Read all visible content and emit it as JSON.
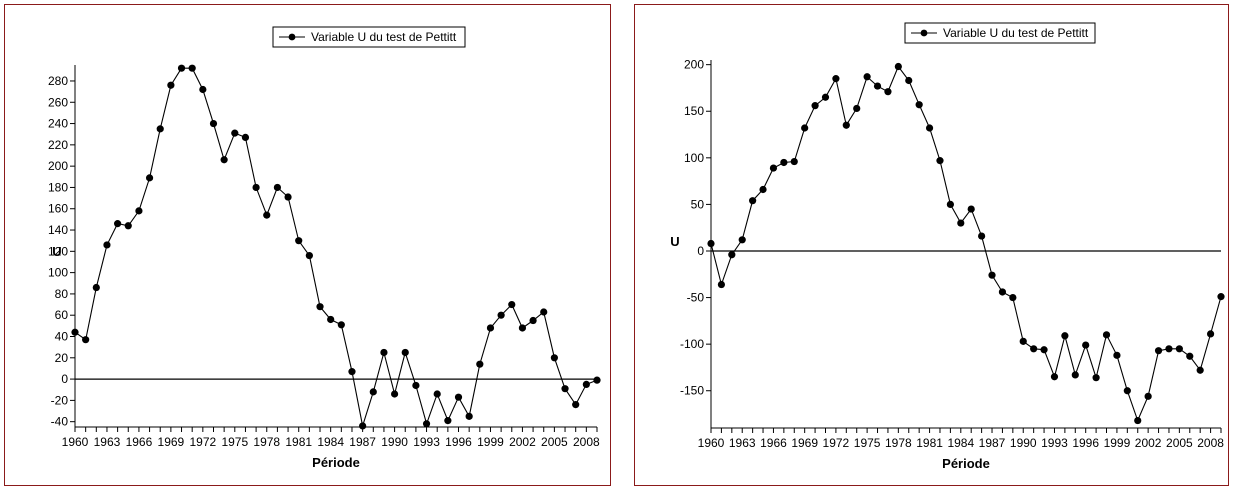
{
  "chart_data": [
    {
      "type": "line",
      "legend": [
        "Variable U du test de Pettitt"
      ],
      "legend_position": "top-center",
      "xlabel": "Période",
      "ylabel": "U",
      "xlim": [
        1960,
        2009
      ],
      "ylim": [
        -45,
        295
      ],
      "xticks": [
        "1960",
        "1963",
        "1966",
        "1969",
        "1972",
        "1975",
        "1978",
        "1981",
        "1984",
        "1987",
        "1990",
        "1993",
        "1996",
        "1999",
        "2002",
        "2005",
        "2008"
      ],
      "yticks": [
        "-40",
        "-20",
        "0",
        "20",
        "40",
        "60",
        "80",
        "100",
        "120",
        "140",
        "160",
        "180",
        "200",
        "220",
        "240",
        "260",
        "280"
      ],
      "zero_line": true,
      "series": [
        {
          "name": "Variable U du test de Pettitt",
          "x": [
            1960,
            1961,
            1962,
            1963,
            1964,
            1965,
            1966,
            1967,
            1968,
            1969,
            1970,
            1971,
            1972,
            1973,
            1974,
            1975,
            1976,
            1977,
            1978,
            1979,
            1980,
            1981,
            1982,
            1983,
            1984,
            1985,
            1986,
            1987,
            1988,
            1989,
            1990,
            1991,
            1992,
            1993,
            1994,
            1995,
            1996,
            1997,
            1998,
            1999,
            2000,
            2001,
            2002,
            2003,
            2004,
            2005,
            2006,
            2007,
            2008,
            2009
          ],
          "y": [
            44,
            37,
            86,
            126,
            146,
            144,
            158,
            189,
            235,
            276,
            292,
            292,
            272,
            240,
            206,
            231,
            227,
            180,
            154,
            180,
            171,
            130,
            116,
            68,
            56,
            51,
            7,
            -44,
            -12,
            25,
            -14,
            25,
            -6,
            -42,
            -14,
            -39,
            -17,
            -35,
            14,
            48,
            60,
            70,
            48,
            55,
            63,
            20,
            -9,
            -24,
            -5,
            -1
          ]
        }
      ]
    },
    {
      "type": "line",
      "legend": [
        "Variable U du test de Pettitt"
      ],
      "legend_position": "top-center",
      "xlabel": "Période",
      "ylabel": "U",
      "xlim": [
        1960,
        2009
      ],
      "ylim": [
        -190,
        205
      ],
      "xticks": [
        "1960",
        "1963",
        "1966",
        "1969",
        "1972",
        "1975",
        "1978",
        "1981",
        "1984",
        "1987",
        "1990",
        "1993",
        "1996",
        "1999",
        "2002",
        "2005",
        "2008"
      ],
      "yticks": [
        "200",
        "150",
        "100",
        "50",
        "0",
        "-50",
        "-100",
        "-150"
      ],
      "zero_line": true,
      "series": [
        {
          "name": "Variable U du test de Pettitt",
          "x": [
            1960,
            1961,
            1962,
            1963,
            1964,
            1965,
            1966,
            1967,
            1968,
            1969,
            1970,
            1971,
            1972,
            1973,
            1974,
            1975,
            1976,
            1977,
            1978,
            1979,
            1980,
            1981,
            1982,
            1983,
            1984,
            1985,
            1986,
            1987,
            1988,
            1989,
            1990,
            1991,
            1992,
            1993,
            1994,
            1995,
            1996,
            1997,
            1998,
            1999,
            2000,
            2001,
            2002,
            2003,
            2004,
            2005,
            2006,
            2007,
            2008,
            2009
          ],
          "y": [
            8,
            -36,
            -4,
            12,
            54,
            66,
            89,
            95,
            96,
            132,
            156,
            165,
            185,
            135,
            153,
            187,
            177,
            171,
            198,
            183,
            157,
            132,
            97,
            50,
            30,
            45,
            16,
            -26,
            -44,
            -50,
            -97,
            -105,
            -106,
            -135,
            -91,
            -133,
            -101,
            -136,
            -90,
            -112,
            -150,
            -182,
            -156,
            -107,
            -105,
            -105,
            -113,
            -128,
            -89,
            -49
          ]
        }
      ]
    }
  ]
}
